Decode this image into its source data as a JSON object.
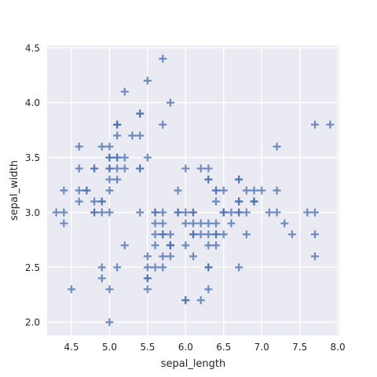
{
  "chart_data": {
    "type": "scatter",
    "xlabel": "sepal_length",
    "ylabel": "sepal_width",
    "xlim": [
      4.18,
      8.02
    ],
    "ylim": [
      1.88,
      4.52
    ],
    "xticks": [
      4.5,
      5.0,
      5.5,
      6.0,
      6.5,
      7.0,
      7.5,
      8.0
    ],
    "xtick_labels": [
      "4.5",
      "5.0",
      "5.5",
      "6.0",
      "6.5",
      "7.0",
      "7.5",
      "8.0"
    ],
    "yticks": [
      2.0,
      2.5,
      3.0,
      3.5,
      4.0,
      4.5
    ],
    "ytick_labels": [
      "2.0",
      "2.5",
      "3.0",
      "3.5",
      "4.0",
      "4.5"
    ],
    "grid": true,
    "marker": "plus",
    "colors": {
      "background": "#eaeaf2",
      "grid": "#ffffff",
      "marker": "#4c72b0"
    },
    "points": [
      [
        5.1,
        3.5
      ],
      [
        4.9,
        3.0
      ],
      [
        4.7,
        3.2
      ],
      [
        4.6,
        3.1
      ],
      [
        5.0,
        3.6
      ],
      [
        5.4,
        3.9
      ],
      [
        4.6,
        3.4
      ],
      [
        5.0,
        3.4
      ],
      [
        4.4,
        2.9
      ],
      [
        4.9,
        3.1
      ],
      [
        5.4,
        3.7
      ],
      [
        4.8,
        3.4
      ],
      [
        4.8,
        3.0
      ],
      [
        4.3,
        3.0
      ],
      [
        5.8,
        4.0
      ],
      [
        5.7,
        4.4
      ],
      [
        5.4,
        3.9
      ],
      [
        5.1,
        3.5
      ],
      [
        5.7,
        3.8
      ],
      [
        5.1,
        3.8
      ],
      [
        5.4,
        3.4
      ],
      [
        5.1,
        3.7
      ],
      [
        4.6,
        3.6
      ],
      [
        5.1,
        3.3
      ],
      [
        4.8,
        3.4
      ],
      [
        5.0,
        3.0
      ],
      [
        5.0,
        3.4
      ],
      [
        5.2,
        3.5
      ],
      [
        5.2,
        3.4
      ],
      [
        4.7,
        3.2
      ],
      [
        4.8,
        3.1
      ],
      [
        5.4,
        3.4
      ],
      [
        5.2,
        4.1
      ],
      [
        5.5,
        4.2
      ],
      [
        4.9,
        3.1
      ],
      [
        5.0,
        3.2
      ],
      [
        5.5,
        3.5
      ],
      [
        4.9,
        3.6
      ],
      [
        4.4,
        3.0
      ],
      [
        5.1,
        3.4
      ],
      [
        5.0,
        3.5
      ],
      [
        4.5,
        2.3
      ],
      [
        4.4,
        3.2
      ],
      [
        5.0,
        3.5
      ],
      [
        5.1,
        3.8
      ],
      [
        4.8,
        3.0
      ],
      [
        5.1,
        3.8
      ],
      [
        4.6,
        3.2
      ],
      [
        5.3,
        3.7
      ],
      [
        5.0,
        3.3
      ],
      [
        7.0,
        3.2
      ],
      [
        6.4,
        3.2
      ],
      [
        6.9,
        3.1
      ],
      [
        5.5,
        2.3
      ],
      [
        6.5,
        2.8
      ],
      [
        5.7,
        2.8
      ],
      [
        6.3,
        3.3
      ],
      [
        4.9,
        2.4
      ],
      [
        6.6,
        2.9
      ],
      [
        5.2,
        2.7
      ],
      [
        5.0,
        2.0
      ],
      [
        5.9,
        3.0
      ],
      [
        6.0,
        2.2
      ],
      [
        6.1,
        2.9
      ],
      [
        5.6,
        2.9
      ],
      [
        6.7,
        3.1
      ],
      [
        5.6,
        3.0
      ],
      [
        5.8,
        2.7
      ],
      [
        6.2,
        2.2
      ],
      [
        5.6,
        2.5
      ],
      [
        5.9,
        3.2
      ],
      [
        6.1,
        2.8
      ],
      [
        6.3,
        2.5
      ],
      [
        6.1,
        2.8
      ],
      [
        6.4,
        2.9
      ],
      [
        6.6,
        3.0
      ],
      [
        6.8,
        2.8
      ],
      [
        6.7,
        3.0
      ],
      [
        6.0,
        2.9
      ],
      [
        5.7,
        2.6
      ],
      [
        5.5,
        2.4
      ],
      [
        5.5,
        2.4
      ],
      [
        5.8,
        2.7
      ],
      [
        6.0,
        2.7
      ],
      [
        5.4,
        3.0
      ],
      [
        6.0,
        3.4
      ],
      [
        6.7,
        3.1
      ],
      [
        6.3,
        2.3
      ],
      [
        5.6,
        3.0
      ],
      [
        5.5,
        2.5
      ],
      [
        5.5,
        2.6
      ],
      [
        6.1,
        3.0
      ],
      [
        5.8,
        2.6
      ],
      [
        5.0,
        2.3
      ],
      [
        5.6,
        2.7
      ],
      [
        5.7,
        3.0
      ],
      [
        5.7,
        2.9
      ],
      [
        6.2,
        2.9
      ],
      [
        5.1,
        2.5
      ],
      [
        5.7,
        2.8
      ],
      [
        6.3,
        3.3
      ],
      [
        5.8,
        2.7
      ],
      [
        7.1,
        3.0
      ],
      [
        6.3,
        2.9
      ],
      [
        6.5,
        3.0
      ],
      [
        7.6,
        3.0
      ],
      [
        4.9,
        2.5
      ],
      [
        7.3,
        2.9
      ],
      [
        6.7,
        2.5
      ],
      [
        7.2,
        3.6
      ],
      [
        6.5,
        3.2
      ],
      [
        6.4,
        2.7
      ],
      [
        6.8,
        3.0
      ],
      [
        5.7,
        2.5
      ],
      [
        5.8,
        2.8
      ],
      [
        6.4,
        3.2
      ],
      [
        6.5,
        3.0
      ],
      [
        7.7,
        3.8
      ],
      [
        7.7,
        2.6
      ],
      [
        6.0,
        2.2
      ],
      [
        6.9,
        3.2
      ],
      [
        5.6,
        2.8
      ],
      [
        7.7,
        2.8
      ],
      [
        6.3,
        2.7
      ],
      [
        6.7,
        3.3
      ],
      [
        7.2,
        3.2
      ],
      [
        6.2,
        2.8
      ],
      [
        6.1,
        3.0
      ],
      [
        6.4,
        2.8
      ],
      [
        7.2,
        3.0
      ],
      [
        7.4,
        2.8
      ],
      [
        7.9,
        3.8
      ],
      [
        6.4,
        2.8
      ],
      [
        6.3,
        2.8
      ],
      [
        6.1,
        2.6
      ],
      [
        7.7,
        3.0
      ],
      [
        6.3,
        3.4
      ],
      [
        6.4,
        3.1
      ],
      [
        6.0,
        3.0
      ],
      [
        6.9,
        3.1
      ],
      [
        6.7,
        3.1
      ],
      [
        6.9,
        3.1
      ],
      [
        5.8,
        2.7
      ],
      [
        6.8,
        3.2
      ],
      [
        6.7,
        3.3
      ],
      [
        6.7,
        3.0
      ],
      [
        6.3,
        2.5
      ],
      [
        6.5,
        3.0
      ],
      [
        6.2,
        3.4
      ],
      [
        5.9,
        3.0
      ]
    ]
  }
}
